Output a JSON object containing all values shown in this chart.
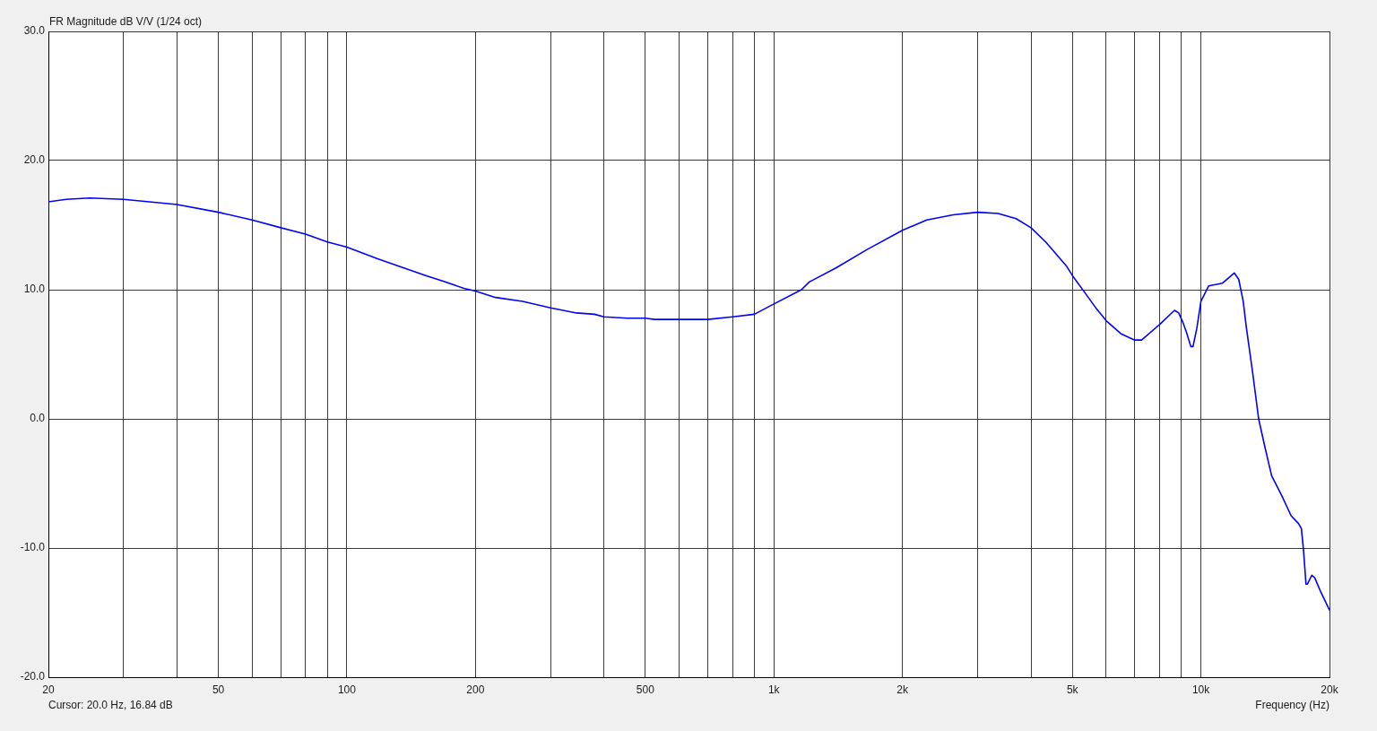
{
  "chart_data": {
    "type": "line",
    "ylabel": "FR Magnitude dB V/V (1/24 oct)",
    "xlabel": "Frequency (Hz)",
    "annotations": [
      "Cursor: 20.0 Hz, 16.84 dB"
    ],
    "x": [
      20,
      22,
      25,
      30,
      40,
      50,
      60,
      70,
      80,
      90,
      100,
      118,
      153,
      170,
      188,
      200,
      223,
      258,
      300,
      345,
      380,
      400,
      454,
      500,
      525,
      600,
      700,
      800,
      900,
      1000,
      1160,
      1210,
      1400,
      1650,
      2000,
      2280,
      2630,
      3000,
      3350,
      3690,
      4000,
      4330,
      4850,
      5000,
      5340,
      5700,
      6000,
      6490,
      7000,
      7260,
      7870,
      8000,
      8670,
      8870,
      9090,
      9250,
      9470,
      9580,
      9780,
      10000,
      10430,
      11220,
      11590,
      11970,
      12260,
      12560,
      12760,
      13200,
      13650,
      14100,
      14640,
      15490,
      16260,
      16920,
      17190,
      17390,
      17620,
      17750,
      18180,
      18470,
      19080,
      20000
    ],
    "series": [
      {
        "color": "#0000ff",
        "values": [
          16.8,
          17.0,
          17.1,
          17.0,
          16.6,
          16.0,
          15.4,
          14.8,
          14.3,
          13.7,
          13.3,
          12.4,
          11.1,
          10.6,
          10.1,
          9.9,
          9.4,
          9.1,
          8.6,
          8.2,
          8.1,
          7.9,
          7.8,
          7.8,
          7.7,
          7.7,
          7.7,
          7.9,
          8.1,
          8.9,
          10.0,
          10.6,
          11.7,
          13.1,
          14.6,
          15.4,
          15.8,
          16.0,
          15.9,
          15.5,
          14.8,
          13.7,
          11.8,
          11.1,
          9.8,
          8.5,
          7.6,
          6.6,
          6.1,
          6.1,
          7.1,
          7.3,
          8.4,
          8.2,
          7.4,
          6.7,
          5.6,
          5.6,
          7.0,
          9.1,
          10.3,
          10.5,
          10.9,
          11.3,
          10.8,
          9.1,
          7.2,
          3.7,
          0.0,
          -2.1,
          -4.4,
          -6.0,
          -7.5,
          -8.1,
          -8.5,
          -10.2,
          -12.8,
          -12.8,
          -12.1,
          -12.3,
          -13.4,
          -14.8
        ]
      }
    ],
    "xlim": [
      20,
      20000
    ],
    "ylim": [
      -20,
      30
    ],
    "xticks": [
      20,
      {
        "value": 30,
        "label": null
      },
      {
        "value": 40,
        "label": null
      },
      50,
      {
        "value": 60,
        "label": null
      },
      {
        "value": 70,
        "label": null
      },
      {
        "value": 80,
        "label": null
      },
      {
        "value": 90,
        "label": null
      },
      100,
      200,
      {
        "value": 300,
        "label": null
      },
      {
        "value": 400,
        "label": null
      },
      500,
      {
        "value": 600,
        "label": null
      },
      {
        "value": 700,
        "label": null
      },
      {
        "value": 800,
        "label": null
      },
      {
        "value": 900,
        "label": null
      },
      {
        "value": 1000,
        "label": "1k"
      },
      {
        "value": 2000,
        "label": "2k"
      },
      {
        "value": 3000,
        "label": null
      },
      {
        "value": 4000,
        "label": null
      },
      {
        "value": 5000,
        "label": "5k"
      },
      {
        "value": 6000,
        "label": null
      },
      {
        "value": 7000,
        "label": null
      },
      {
        "value": 8000,
        "label": null
      },
      {
        "value": 9000,
        "label": null
      },
      {
        "value": 10000,
        "label": "10k"
      },
      {
        "value": 20000,
        "label": "20k"
      }
    ],
    "yticks": [
      {
        "value": -20,
        "label": "-20.0"
      },
      {
        "value": -10,
        "label": "-10.0"
      },
      {
        "value": 0,
        "label": "0.0"
      },
      {
        "value": 10,
        "label": "10.0"
      },
      {
        "value": 20,
        "label": "20.0"
      },
      {
        "value": 30,
        "label": "30.0"
      }
    ],
    "log": "x",
    "grid": true,
    "legend": false
  }
}
